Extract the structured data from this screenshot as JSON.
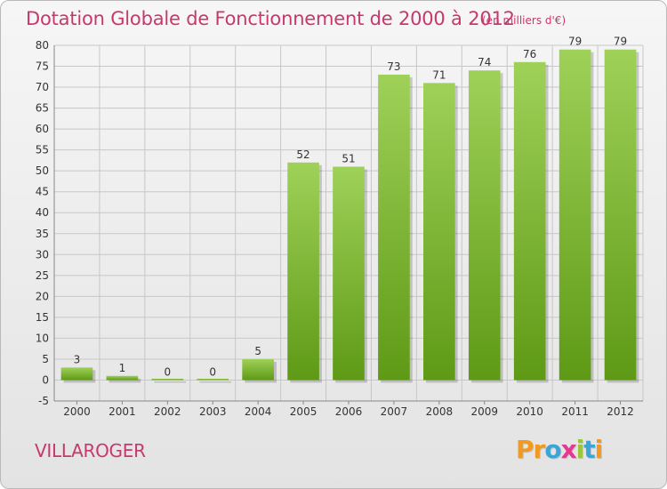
{
  "title": "Dotation Globale de Fonctionnement de 2000 à 2012",
  "unit_note": "(en milliers d'€)",
  "commune": "VILLAROGER",
  "logo": {
    "letters": [
      "P",
      "r",
      "o",
      "x",
      "i",
      "t",
      "i"
    ],
    "colors": [
      "#f29a1f",
      "#f29a1f",
      "#3aa6d8",
      "#e23a8e",
      "#9bc53d",
      "#3aa6d8",
      "#f29a1f"
    ]
  },
  "colors": {
    "title": "#c8386c",
    "bar_top": "#9fd158",
    "bar_bottom": "#5e9a16",
    "grid": "#c7c7c7"
  },
  "chart_data": {
    "type": "bar",
    "categories": [
      "2000",
      "2001",
      "2002",
      "2003",
      "2004",
      "2005",
      "2006",
      "2007",
      "2008",
      "2009",
      "2010",
      "2011",
      "2012"
    ],
    "values": [
      3,
      1,
      0,
      0,
      5,
      52,
      51,
      73,
      71,
      74,
      76,
      79,
      79
    ],
    "ylim": [
      -5,
      80
    ],
    "yticks": [
      -5,
      0,
      5,
      10,
      15,
      20,
      25,
      30,
      35,
      40,
      45,
      50,
      55,
      60,
      65,
      70,
      75,
      80
    ],
    "grid": true
  }
}
